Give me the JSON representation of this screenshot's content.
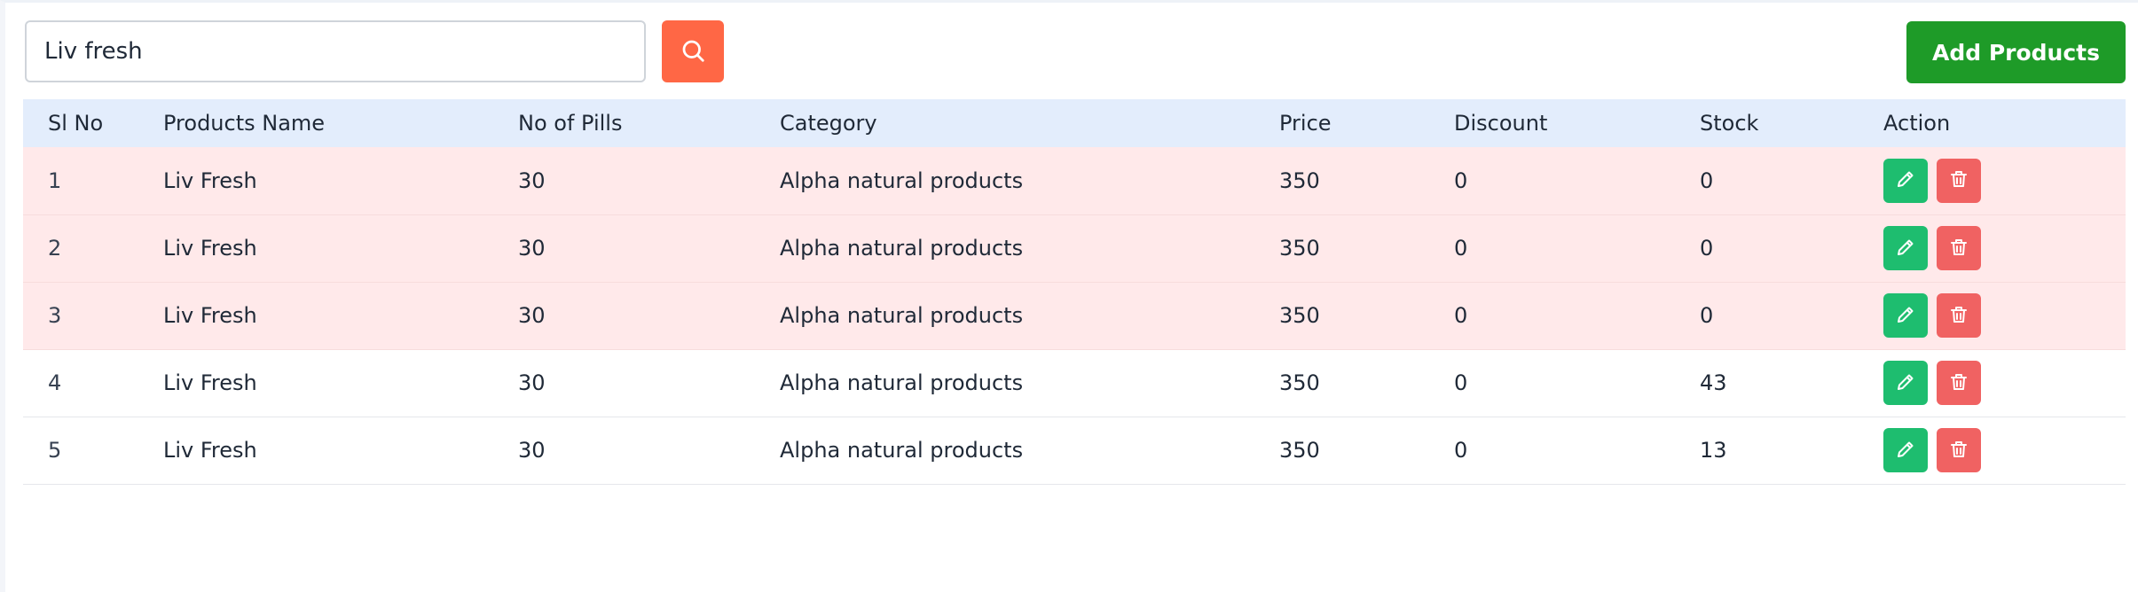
{
  "search": {
    "value": "Liv fresh",
    "button_icon": "search-icon",
    "button_color": "#ff6745"
  },
  "toolbar": {
    "add_label": "Add Products",
    "add_color": "#1e9b28"
  },
  "table": {
    "columns": [
      "Sl No",
      "Products Name",
      "No of Pills",
      "Category",
      "Price",
      "Discount",
      "Stock",
      "Action"
    ],
    "rows": [
      {
        "sl_no": "1",
        "name": "Liv Fresh",
        "pills": "30",
        "category": "Alpha natural products",
        "price": "350",
        "discount": "0",
        "stock": "0"
      },
      {
        "sl_no": "2",
        "name": "Liv Fresh",
        "pills": "30",
        "category": "Alpha natural products",
        "price": "350",
        "discount": "0",
        "stock": "0"
      },
      {
        "sl_no": "3",
        "name": "Liv Fresh",
        "pills": "30",
        "category": "Alpha natural products",
        "price": "350",
        "discount": "0",
        "stock": "0"
      },
      {
        "sl_no": "4",
        "name": "Liv Fresh",
        "pills": "30",
        "category": "Alpha natural products",
        "price": "350",
        "discount": "0",
        "stock": "43"
      },
      {
        "sl_no": "5",
        "name": "Liv Fresh",
        "pills": "30",
        "category": "Alpha natural products",
        "price": "350",
        "discount": "0",
        "stock": "13"
      }
    ],
    "header_color": "#e3edfc",
    "out_of_stock_row_color": "#ffe9ea",
    "edit_icon": "pencil-icon",
    "edit_color": "#1ebd6f",
    "delete_icon": "trash-icon",
    "delete_color": "#f06262"
  }
}
